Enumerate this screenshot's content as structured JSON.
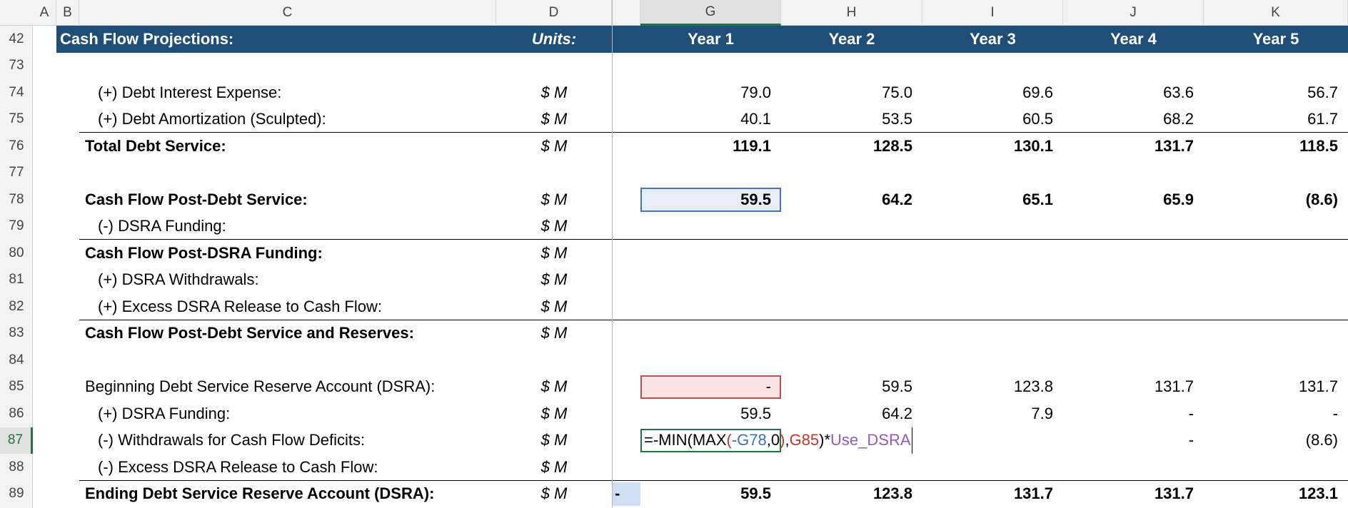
{
  "columns": [
    "A",
    "B",
    "C",
    "D",
    "G",
    "H",
    "I",
    "J",
    "K"
  ],
  "header": {
    "row": "42",
    "label": "Cash Flow Projections:",
    "units": "Units:",
    "years": [
      "Year 1",
      "Year 2",
      "Year 3",
      "Year 4",
      "Year 5"
    ]
  },
  "active_column": "G",
  "active_row": "87",
  "rows": [
    {
      "row": "73"
    },
    {
      "row": "74",
      "label": "(+) Debt Interest Expense:",
      "units": "$ M",
      "indent": true,
      "values": [
        "79.0",
        "75.0",
        "69.6",
        "63.6",
        "56.7"
      ]
    },
    {
      "row": "75",
      "label": "(+) Debt Amortization (Sculpted):",
      "units": "$ M",
      "indent": true,
      "values": [
        "40.1",
        "53.5",
        "60.5",
        "68.2",
        "61.7"
      ]
    },
    {
      "row": "76",
      "label": "Total Debt Service:",
      "units": "$ M",
      "bold": true,
      "border_top": true,
      "values": [
        "119.1",
        "128.5",
        "130.1",
        "131.7",
        "118.5"
      ]
    },
    {
      "row": "77"
    },
    {
      "row": "78",
      "label": "Cash Flow Post-Debt Service:",
      "units": "$ M",
      "bold": true,
      "highlight": "blue",
      "values": [
        "59.5",
        "64.2",
        "65.1",
        "65.9",
        "(8.6)"
      ]
    },
    {
      "row": "79",
      "label": "(-) DSRA Funding:",
      "units": "$ M",
      "indent": true
    },
    {
      "row": "80",
      "label": "Cash Flow Post-DSRA Funding:",
      "units": "$ M",
      "bold": true,
      "border_top": true
    },
    {
      "row": "81",
      "label": "(+) DSRA Withdrawals:",
      "units": "$ M",
      "indent": true
    },
    {
      "row": "82",
      "label": "(+) Excess DSRA Release to Cash Flow:",
      "units": "$ M",
      "indent": true
    },
    {
      "row": "83",
      "label": "Cash Flow Post-Debt Service and Reserves:",
      "units": "$ M",
      "bold": true,
      "border_top": true
    },
    {
      "row": "84"
    },
    {
      "row": "85",
      "label": "Beginning Debt Service Reserve Account (DSRA):",
      "units": "$ M",
      "highlight": "red",
      "values": [
        "-",
        "59.5",
        "123.8",
        "131.7",
        "131.7"
      ]
    },
    {
      "row": "86",
      "label": "(+) DSRA Funding:",
      "units": "$ M",
      "indent": true,
      "values": [
        "59.5",
        "64.2",
        "7.9",
        "-",
        "-"
      ]
    },
    {
      "row": "87",
      "label": "(-) Withdrawals for Cash Flow Deficits:",
      "units": "$ M",
      "indent": true,
      "formula": [
        {
          "text": "=-MIN(MAX",
          "color": "#000000"
        },
        {
          "text": "(",
          "color": "#c0392b"
        },
        {
          "text": "-G78",
          "color": "#3d6fc4"
        },
        {
          "text": ",0",
          "color": "#000000"
        },
        {
          "text": ")",
          "color": "#c0392b"
        },
        {
          "text": ",",
          "color": "#000000"
        },
        {
          "text": "G85",
          "color": "#c0392b"
        },
        {
          "text": ")*",
          "color": "#000000"
        },
        {
          "text": "Use_DSRA",
          "color": "#8e5bc2"
        }
      ],
      "values": [
        null,
        null,
        null,
        "-",
        "(8.6)"
      ]
    },
    {
      "row": "88",
      "label": "(-) Excess DSRA Release to Cash Flow:",
      "units": "$ M",
      "indent": true
    },
    {
      "row": "89",
      "label": "Ending Debt Service Reserve Account (DSRA):",
      "units": "$ M",
      "bold": true,
      "border_top": true,
      "pre": "-",
      "values": [
        "59.5",
        "123.8",
        "131.7",
        "131.7",
        "123.1"
      ]
    }
  ]
}
